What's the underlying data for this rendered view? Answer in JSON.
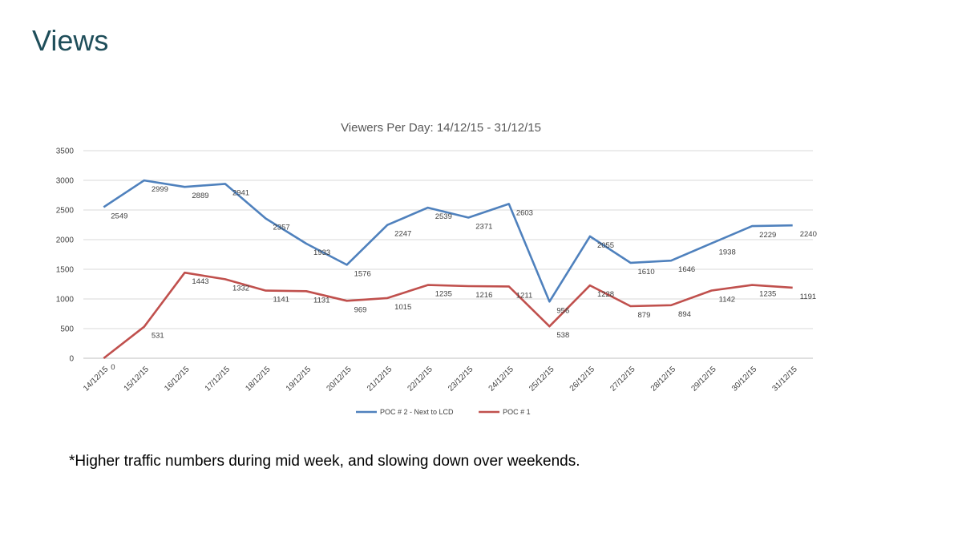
{
  "slide": {
    "title": "Views",
    "footnote": "*Higher traffic numbers during mid week, and slowing down over weekends."
  },
  "chart_data": {
    "type": "line",
    "title": "Viewers Per Day:  14/12/15 - 31/12/15",
    "xlabel": "",
    "ylabel": "",
    "ylim": [
      0,
      3500
    ],
    "yticks": [
      0,
      500,
      1000,
      1500,
      2000,
      2500,
      3000,
      3500
    ],
    "grid": true,
    "legend_position": "bottom",
    "categories": [
      "14/12/15",
      "15/12/15",
      "16/12/15",
      "17/12/15",
      "18/12/15",
      "19/12/15",
      "20/12/15",
      "21/12/15",
      "22/12/15",
      "23/12/15",
      "24/12/15",
      "25/12/15",
      "26/12/15",
      "27/12/15",
      "28/12/15",
      "29/12/15",
      "30/12/15",
      "31/12/15"
    ],
    "series": [
      {
        "name": "POC # 2 - Next to LCD",
        "color": "#4f81bd",
        "values": [
          2549,
          2999,
          2889,
          2941,
          2357,
          1933,
          1576,
          2247,
          2539,
          2371,
          2603,
          956,
          2055,
          1610,
          1646,
          1938,
          2229,
          2240
        ]
      },
      {
        "name": "POC # 1",
        "color": "#c0504d",
        "values": [
          0,
          531,
          1443,
          1332,
          1141,
          1131,
          969,
          1015,
          1235,
          1216,
          1211,
          538,
          1228,
          879,
          894,
          1142,
          1235,
          1191
        ]
      }
    ]
  }
}
